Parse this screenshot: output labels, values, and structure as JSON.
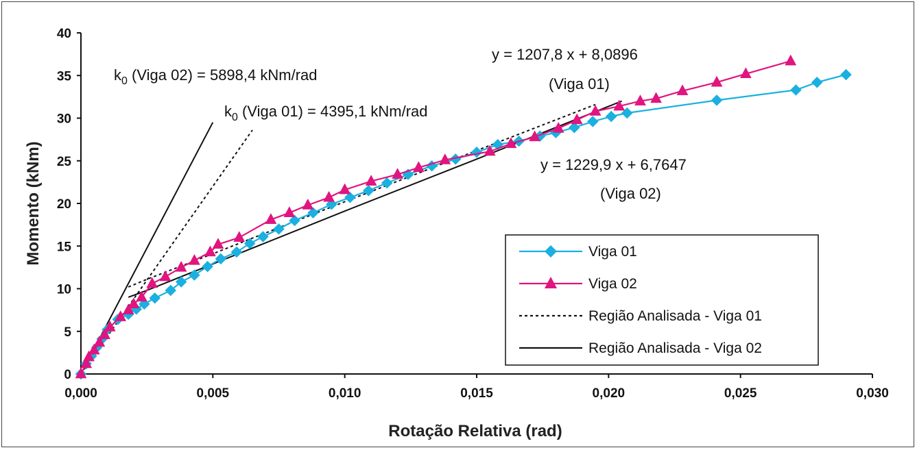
{
  "chart_data": {
    "type": "line",
    "xlabel": "Rotação Relativa (rad)",
    "ylabel": "Momento (kNm)",
    "xlim": [
      0,
      0.03
    ],
    "ylim": [
      0,
      40
    ],
    "xticks": [
      "0,000",
      "0,005",
      "0,010",
      "0,015",
      "0,020",
      "0,025",
      "0,030"
    ],
    "yticks": [
      "0",
      "5",
      "10",
      "15",
      "20",
      "25",
      "30",
      "35",
      "40"
    ],
    "grid": false,
    "legend_position": "bottom-right",
    "colors": {
      "viga01": "#1ab0e0",
      "viga02": "#e0157f",
      "region": "#111111"
    },
    "series": [
      {
        "name": "Viga 01",
        "marker": "diamond",
        "color": "#1ab0e0",
        "x": [
          0,
          0.0002,
          0.0004,
          0.0006,
          0.0008,
          0.001,
          0.0014,
          0.0018,
          0.0021,
          0.0024,
          0.0028,
          0.0034,
          0.0038,
          0.0043,
          0.0048,
          0.0053,
          0.0059,
          0.0064,
          0.0069,
          0.0075,
          0.0081,
          0.0088,
          0.0095,
          0.0102,
          0.0109,
          0.0116,
          0.0124,
          0.0133,
          0.0142,
          0.015,
          0.0158,
          0.0166,
          0.0174,
          0.018,
          0.0187,
          0.0194,
          0.0201,
          0.0207,
          0.0241,
          0.0271,
          0.0279,
          0.029
        ],
        "y": [
          0,
          1.2,
          2.1,
          3.1,
          4.1,
          5.2,
          6.4,
          7.0,
          7.6,
          8.2,
          8.9,
          9.8,
          10.8,
          11.6,
          12.6,
          13.5,
          14.3,
          15.3,
          16.1,
          17.0,
          18.0,
          18.9,
          19.9,
          20.7,
          21.5,
          22.4,
          23.4,
          24.4,
          25.2,
          26.0,
          26.9,
          27.3,
          27.9,
          28.3,
          28.9,
          29.6,
          30.2,
          30.6,
          32.1,
          33.3,
          34.2,
          35.1
        ]
      },
      {
        "name": "Viga 02",
        "marker": "triangle",
        "color": "#e0157f",
        "x": [
          0,
          0.0002,
          0.0003,
          0.0005,
          0.0007,
          0.0009,
          0.0011,
          0.0015,
          0.0018,
          0.002,
          0.0023,
          0.0027,
          0.0032,
          0.0038,
          0.0043,
          0.0049,
          0.0052,
          0.006,
          0.0072,
          0.0079,
          0.0086,
          0.0094,
          0.01,
          0.011,
          0.012,
          0.0128,
          0.0138,
          0.0155,
          0.0163,
          0.0172,
          0.0181,
          0.0188,
          0.0195,
          0.0204,
          0.0212,
          0.0218,
          0.0228,
          0.0241,
          0.0252,
          0.0269
        ],
        "y": [
          0,
          1.2,
          2.0,
          2.8,
          3.7,
          4.6,
          5.5,
          6.7,
          7.5,
          8.2,
          9.0,
          10.6,
          11.4,
          12.5,
          13.3,
          14.3,
          15.2,
          16.0,
          18.1,
          18.9,
          19.8,
          20.7,
          21.6,
          22.6,
          23.4,
          24.2,
          25.1,
          26.1,
          27.0,
          27.8,
          28.8,
          29.8,
          30.8,
          31.4,
          32.0,
          32.3,
          33.2,
          34.2,
          35.2,
          36.7
        ]
      },
      {
        "name": "Região Analisada - Viga 01",
        "style": "dashed",
        "color": "#111111",
        "x": [
          0.0018,
          0.0025,
          0.005,
          0.01,
          0.015,
          0.0195
        ],
        "y": [
          10.2,
          11.1,
          14.1,
          20.2,
          26.2,
          31.6
        ]
      },
      {
        "name": "Região Analisada - Viga 02",
        "style": "solid",
        "color": "#111111",
        "x": [
          0.0018,
          0.0025,
          0.005,
          0.01,
          0.015,
          0.0205
        ],
        "y": [
          9.0,
          9.8,
          12.9,
          19.1,
          25.2,
          32.0
        ]
      },
      {
        "name": "k0 (Viga 01)",
        "style": "dashed",
        "color": "#111111",
        "x": [
          0,
          0.0065
        ],
        "y": [
          0,
          28.6
        ]
      },
      {
        "name": "k0 (Viga 02)",
        "style": "solid",
        "color": "#111111",
        "x": [
          0,
          0.005
        ],
        "y": [
          0,
          29.5
        ]
      }
    ],
    "annotations": [
      {
        "id": "k0v02",
        "prefix": "k",
        "sub": "0",
        "text": " (Viga 02) = 5898,4 kNm/rad"
      },
      {
        "id": "k0v01",
        "prefix": "k",
        "sub": "0",
        "text": " (Viga 01) = 4395,1 kNm/rad"
      },
      {
        "id": "eq1",
        "text": "y = 1207,8  x + 8,0896"
      },
      {
        "id": "eq1label",
        "text": "(Viga 01)"
      },
      {
        "id": "eq2",
        "text": "y = 1229,9  x + 6,7647"
      },
      {
        "id": "eq2label",
        "text": "(Viga 02)"
      }
    ]
  }
}
